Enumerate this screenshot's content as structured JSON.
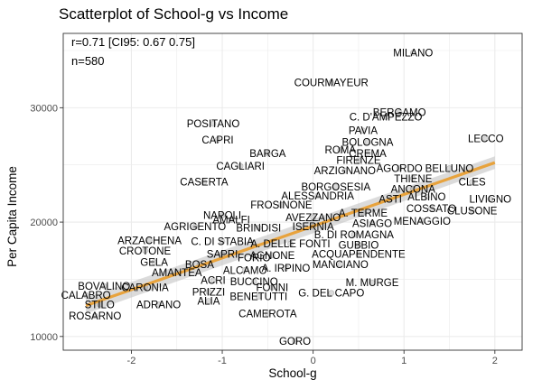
{
  "chart_data": {
    "type": "scatter",
    "title": "Scatterplot of School-g vs Income",
    "xlabel": "School-g",
    "ylabel": "Per Capita Income",
    "xlim": [
      -2.75,
      2.3
    ],
    "ylim": [
      8800,
      36500
    ],
    "xticks": [
      -2,
      -1,
      0,
      1,
      2
    ],
    "xtick_labels": [
      "-2",
      "-1",
      "0",
      "1",
      "2"
    ],
    "yticks": [
      10000,
      20000,
      30000
    ],
    "ytick_labels": [
      "10000",
      "20000",
      "30000"
    ],
    "grid": true,
    "legend": "none",
    "annotations": [
      "r=0.71 [CI95: 0.67 0.75]",
      "n=580"
    ],
    "colors": {
      "point": "#6e6e6e",
      "trend": "#e8a33d",
      "ribbon": "#bdbdbd",
      "grid": "#ebebeb",
      "panel_border": "#333333"
    },
    "trend": {
      "x": [
        -2.5,
        2.0
      ],
      "y": [
        12700,
        25200
      ]
    },
    "points": [
      {
        "x": 1.1,
        "y": 34800,
        "label": "MILANO"
      },
      {
        "x": 0.2,
        "y": 32200,
        "label": "COURMAYEUR"
      },
      {
        "x": 0.95,
        "y": 29600,
        "label": "BERGAMO"
      },
      {
        "x": 0.8,
        "y": 29200,
        "label": "C. D'AMPEZZO"
      },
      {
        "x": -1.1,
        "y": 28600,
        "label": "POSITANO"
      },
      {
        "x": 0.55,
        "y": 28000,
        "label": "PAVIA"
      },
      {
        "x": 1.9,
        "y": 27300,
        "label": "LECCO"
      },
      {
        "x": -1.05,
        "y": 27200,
        "label": "CAPRI"
      },
      {
        "x": 0.6,
        "y": 27000,
        "label": "BOLOGNA"
      },
      {
        "x": 0.3,
        "y": 26300,
        "label": "ROMA"
      },
      {
        "x": 0.6,
        "y": 26000,
        "label": "CREMA"
      },
      {
        "x": -0.5,
        "y": 26000,
        "label": "BARGA"
      },
      {
        "x": 0.5,
        "y": 25400,
        "label": "FIRENZE"
      },
      {
        "x": -0.8,
        "y": 24900,
        "label": "CAGLIARI"
      },
      {
        "x": 0.35,
        "y": 24500,
        "label": "ARZIGNANO"
      },
      {
        "x": 0.95,
        "y": 24700,
        "label": "AGORDO"
      },
      {
        "x": 1.5,
        "y": 24700,
        "label": "BELLUNO"
      },
      {
        "x": 1.1,
        "y": 23800,
        "label": "THIENE"
      },
      {
        "x": -1.2,
        "y": 23500,
        "label": "CASERTA"
      },
      {
        "x": 1.75,
        "y": 23500,
        "label": "CLES"
      },
      {
        "x": 0.25,
        "y": 23100,
        "label": "BORGOSESIA"
      },
      {
        "x": 1.1,
        "y": 22900,
        "label": "ANCONA"
      },
      {
        "x": 0.05,
        "y": 22300,
        "label": "ALESSANDRIA"
      },
      {
        "x": 1.25,
        "y": 22200,
        "label": "ALBINO"
      },
      {
        "x": 0.85,
        "y": 22000,
        "label": "ASTI"
      },
      {
        "x": 1.95,
        "y": 22000,
        "label": "LIVIGNO"
      },
      {
        "x": -0.35,
        "y": 21500,
        "label": "FROSINONE"
      },
      {
        "x": 1.3,
        "y": 21200,
        "label": "COSSATO"
      },
      {
        "x": 1.75,
        "y": 21000,
        "label": "CLUSONE"
      },
      {
        "x": 0.55,
        "y": 20800,
        "label": "A. TERME"
      },
      {
        "x": -1.0,
        "y": 20600,
        "label": "NAPOLI"
      },
      {
        "x": 0.0,
        "y": 20400,
        "label": "AVEZZANO"
      },
      {
        "x": -0.9,
        "y": 20200,
        "label": "AMALFI"
      },
      {
        "x": 1.2,
        "y": 20100,
        "label": "MENAGGIO"
      },
      {
        "x": 0.65,
        "y": 19900,
        "label": "ASIAGO"
      },
      {
        "x": -1.3,
        "y": 19600,
        "label": "AGRIGENTO"
      },
      {
        "x": 0.0,
        "y": 19600,
        "label": "ISERNIA"
      },
      {
        "x": -0.6,
        "y": 19500,
        "label": "BRINDISI"
      },
      {
        "x": 0.45,
        "y": 18900,
        "label": "B. DI ROMAGNA"
      },
      {
        "x": -1.8,
        "y": 18400,
        "label": "ARZACHENA"
      },
      {
        "x": -1.0,
        "y": 18300,
        "label": "C. DI STABIA"
      },
      {
        "x": -0.25,
        "y": 18100,
        "label": "A. DELLE FONTI"
      },
      {
        "x": 0.5,
        "y": 18000,
        "label": "GUBBIO"
      },
      {
        "x": -1.85,
        "y": 17500,
        "label": "CROTONE"
      },
      {
        "x": 0.5,
        "y": 17200,
        "label": "ACQUAPENDENTE"
      },
      {
        "x": -1.0,
        "y": 17200,
        "label": "SAPRI"
      },
      {
        "x": -0.45,
        "y": 17100,
        "label": "AGNONE"
      },
      {
        "x": -0.65,
        "y": 16900,
        "label": "FORIO"
      },
      {
        "x": -1.75,
        "y": 16500,
        "label": "GELA"
      },
      {
        "x": -1.25,
        "y": 16300,
        "label": "BOSA"
      },
      {
        "x": 0.3,
        "y": 16300,
        "label": "MANCIANO"
      },
      {
        "x": -0.3,
        "y": 16000,
        "label": "A. IRPINO"
      },
      {
        "x": -0.75,
        "y": 15800,
        "label": "ALCAMO"
      },
      {
        "x": -1.5,
        "y": 15600,
        "label": "AMANTEA"
      },
      {
        "x": -1.1,
        "y": 14900,
        "label": "ACRI"
      },
      {
        "x": -0.65,
        "y": 14800,
        "label": "BUCCINO"
      },
      {
        "x": 0.65,
        "y": 14700,
        "label": "M. MURGE"
      },
      {
        "x": -2.3,
        "y": 14400,
        "label": "BOVALINO"
      },
      {
        "x": -1.85,
        "y": 14300,
        "label": "CARONIA"
      },
      {
        "x": -0.45,
        "y": 14300,
        "label": "FONNI"
      },
      {
        "x": -1.15,
        "y": 13900,
        "label": "PRIZZI"
      },
      {
        "x": 0.2,
        "y": 13800,
        "label": "G. DEL CAPO"
      },
      {
        "x": -2.5,
        "y": 13600,
        "label": "CALABRO"
      },
      {
        "x": -0.6,
        "y": 13500,
        "label": "BENETUTTI"
      },
      {
        "x": -1.15,
        "y": 13100,
        "label": "ALIA"
      },
      {
        "x": -2.35,
        "y": 12800,
        "label": "STILO"
      },
      {
        "x": -1.7,
        "y": 12800,
        "label": "ADRANO"
      },
      {
        "x": -2.4,
        "y": 11800,
        "label": "ROSARNO"
      },
      {
        "x": -0.5,
        "y": 12000,
        "label": "CAMEROTA"
      },
      {
        "x": -0.2,
        "y": 9600,
        "label": "GORO"
      }
    ]
  }
}
